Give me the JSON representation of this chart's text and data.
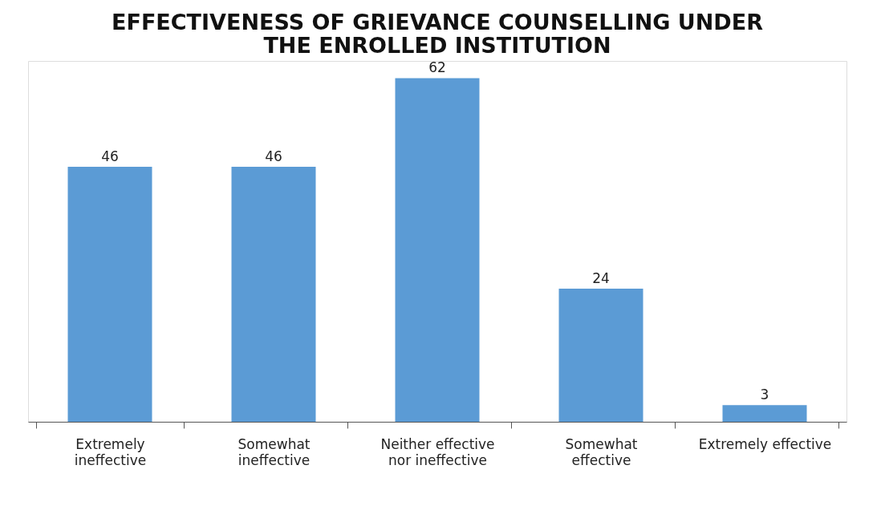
{
  "chart_data": {
    "type": "bar",
    "title": "EFFECTIVENESS OF GRIEVANCE COUNSELLING UNDER THE ENROLLED INSTITUTION",
    "categories": [
      "Extremely\nineffective",
      "Somewhat\nineffective",
      "Neither effective\nnor ineffective",
      "Somewhat\neffective",
      "Extremely effective"
    ],
    "values": [
      46,
      46,
      62,
      24,
      3
    ],
    "color": "#5b9bd5",
    "data_labels": true,
    "grid": false
  }
}
